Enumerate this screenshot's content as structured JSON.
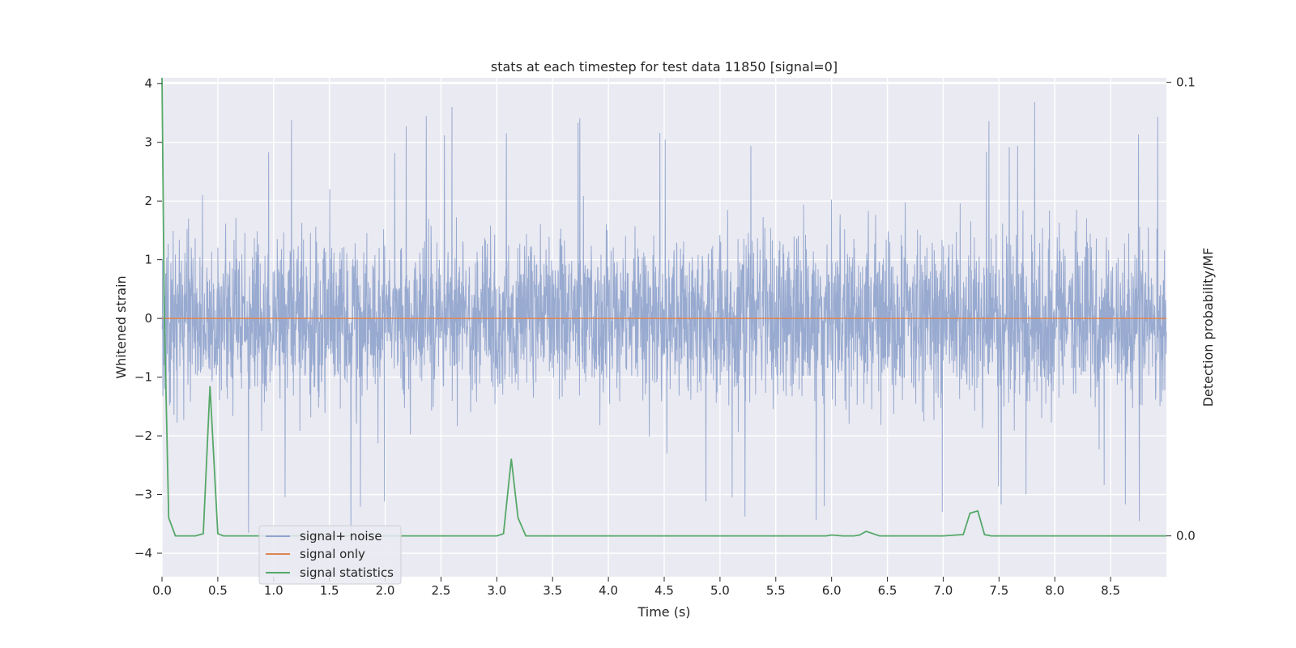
{
  "chart_data": {
    "type": "line",
    "title": "stats at each timestep for test data 11850 [signal=0]",
    "xlabel": "Time (s)",
    "ylabel": "Whitened strain",
    "y2label": "Detection probability/MF",
    "xlim": [
      0,
      9.0
    ],
    "ylim": [
      -4.4,
      4.1
    ],
    "y2lim": [
      -0.009,
      0.101
    ],
    "x_ticks": [
      "0.0",
      "0.5",
      "1.0",
      "1.5",
      "2.0",
      "2.5",
      "3.0",
      "3.5",
      "4.0",
      "4.5",
      "5.0",
      "5.5",
      "6.0",
      "6.5",
      "7.0",
      "7.5",
      "8.0",
      "8.5"
    ],
    "y_ticks": [
      "−4",
      "−3",
      "−2",
      "−1",
      "0",
      "1",
      "2",
      "3",
      "4"
    ],
    "y2_ticks": [
      "0.0",
      "0.1"
    ],
    "grid": true,
    "legend_position": "lower-left",
    "colors": {
      "background": "#eaeaf2",
      "grid": "#ffffff",
      "noise": "#8fa3cc",
      "signal": "#dd8452",
      "stats": "#55a868"
    },
    "series": [
      {
        "name": "signal+ noise",
        "axis": "left",
        "description": "whitened strain noise samples at 2048 Hz spanning roughly -2 to +2 with peaks up to about 3.8 and dips down to about -4.1",
        "typical_range": [
          -2.0,
          2.0
        ],
        "max": 3.75,
        "min": -4.1
      },
      {
        "name": "signal only",
        "axis": "left",
        "x": [
          0,
          9.0
        ],
        "values": [
          0,
          0
        ]
      },
      {
        "name": "signal statistics",
        "axis": "right",
        "x": [
          0,
          0.02,
          0.06,
          0.12,
          0.3,
          0.37,
          0.43,
          0.5,
          0.55,
          0.9,
          1.5,
          2.0,
          2.5,
          3.0,
          3.06,
          3.13,
          3.19,
          3.26,
          3.5,
          4.0,
          4.5,
          5.0,
          5.5,
          5.95,
          6.0,
          6.1,
          6.2,
          6.25,
          6.31,
          6.37,
          6.43,
          6.5,
          7.0,
          7.18,
          7.24,
          7.31,
          7.37,
          7.43,
          7.5,
          8.0,
          8.5,
          9.0
        ],
        "values": [
          0.102,
          0.05,
          0.004,
          0.0,
          0.0,
          0.0005,
          0.033,
          0.0005,
          0.0,
          0.0,
          0.0,
          0.0,
          0.0,
          0.0,
          0.0005,
          0.017,
          0.004,
          0.0,
          0.0,
          0.0,
          0.0,
          0.0,
          0.0,
          0.0,
          0.0002,
          0.0,
          0.0,
          0.0002,
          0.001,
          0.0005,
          0.0,
          0.0,
          0.0,
          0.0003,
          0.005,
          0.0055,
          0.0003,
          0.0,
          0.0,
          0.0,
          0.0,
          0.0
        ]
      }
    ]
  }
}
